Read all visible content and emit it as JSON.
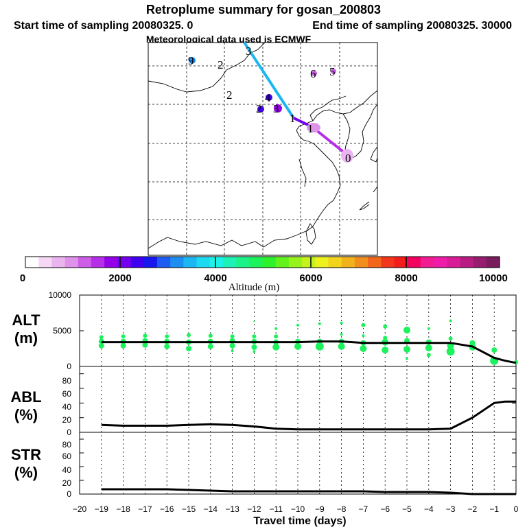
{
  "title": "Retroplume summary for gosan_200803",
  "subtitle_start": "Start time of sampling 20080325.    0",
  "subtitle_end": "End time of sampling 20080325. 30000",
  "subtitle_met": "Meteorological data used is ECMWF",
  "colorbar": {
    "label": "Altitude  (m)",
    "tick_labels": [
      "0",
      "2000",
      "4000",
      "6000",
      "8000",
      "10000"
    ],
    "colors": [
      "#ffffff",
      "#f5d8f5",
      "#eab5ef",
      "#df92ea",
      "#cc5ee8",
      "#b62ee8",
      "#9400e8",
      "#7400ee",
      "#4000f0",
      "#1818ee",
      "#1c5cf2",
      "#1c8ef2",
      "#1cb6f2",
      "#1cdaf2",
      "#1cf2e6",
      "#1cf2b8",
      "#1cf28a",
      "#1cf25c",
      "#2cf22c",
      "#64f21c",
      "#98f21c",
      "#c6f21c",
      "#eef21c",
      "#f2d41c",
      "#f2b21c",
      "#f28e1c",
      "#f2661c",
      "#f2361c",
      "#f21c1c",
      "#f20060",
      "#f21c92",
      "#ee1ca8",
      "#d81c98",
      "#b81c82",
      "#981c6e",
      "#781c5c"
    ]
  },
  "map": {
    "trajectory_labels": [
      {
        "text": "0",
        "color": "#000000"
      },
      {
        "text": "1",
        "color": "#000000"
      },
      {
        "text": "1",
        "color": "#000000"
      },
      {
        "text": "2",
        "color": "#000000"
      },
      {
        "text": "2",
        "color": "#000000"
      },
      {
        "text": "2",
        "color": "#000000"
      },
      {
        "text": "3",
        "color": "#000000"
      },
      {
        "text": "4",
        "color": "#000000"
      },
      {
        "text": "5",
        "color": "#000000"
      },
      {
        "text": "6",
        "color": "#000000"
      },
      {
        "text": "3",
        "color": "#000000"
      },
      {
        "text": "9",
        "color": "#000000"
      }
    ]
  },
  "chart_data": [
    {
      "type": "scatter",
      "panel": "ALT",
      "ylabel_line1": "ALT",
      "ylabel_line2": "(m)",
      "ylim": [
        0,
        10000
      ],
      "yticks": [
        "0",
        "5000",
        "10000"
      ],
      "line": {
        "name": "mean altitude",
        "x": [
          0,
          -0.5,
          -1,
          -2,
          -3,
          -4,
          -5,
          -6,
          -7,
          -8,
          -9,
          -10,
          -11,
          -12,
          -13,
          -14,
          -15,
          -16,
          -17,
          -18,
          -19
        ],
        "y": [
          500,
          800,
          1200,
          2800,
          3300,
          3300,
          3300,
          3300,
          3300,
          3500,
          3500,
          3400,
          3400,
          3400,
          3400,
          3400,
          3400,
          3400,
          3400,
          3400,
          3400
        ]
      },
      "points": [
        {
          "x": 0,
          "y": 600,
          "s": 3
        },
        {
          "x": -1,
          "y": 800,
          "s": 6
        },
        {
          "x": -1,
          "y": 2300,
          "s": 4
        },
        {
          "x": -2,
          "y": 2700,
          "s": 5
        },
        {
          "x": -2,
          "y": 3300,
          "s": 4
        },
        {
          "x": -3,
          "y": 2100,
          "s": 6
        },
        {
          "x": -3,
          "y": 2900,
          "s": 5
        },
        {
          "x": -3,
          "y": 3900,
          "s": 3
        },
        {
          "x": -3,
          "y": 6400,
          "s": 2
        },
        {
          "x": -4,
          "y": 1600,
          "s": 3
        },
        {
          "x": -4,
          "y": 2600,
          "s": 5
        },
        {
          "x": -4,
          "y": 3400,
          "s": 4
        },
        {
          "x": -4,
          "y": 5300,
          "s": 2
        },
        {
          "x": -5,
          "y": 1100,
          "s": 2
        },
        {
          "x": -5,
          "y": 2400,
          "s": 5
        },
        {
          "x": -5,
          "y": 3600,
          "s": 4
        },
        {
          "x": -5,
          "y": 5100,
          "s": 5
        },
        {
          "x": -6,
          "y": 2300,
          "s": 5
        },
        {
          "x": -6,
          "y": 3400,
          "s": 5
        },
        {
          "x": -6,
          "y": 4000,
          "s": 3
        },
        {
          "x": -6,
          "y": 5600,
          "s": 3
        },
        {
          "x": -7,
          "y": 2500,
          "s": 5
        },
        {
          "x": -7,
          "y": 3300,
          "s": 4
        },
        {
          "x": -7,
          "y": 4300,
          "s": 2
        },
        {
          "x": -7,
          "y": 5800,
          "s": 3
        },
        {
          "x": -8,
          "y": 2800,
          "s": 5
        },
        {
          "x": -8,
          "y": 3500,
          "s": 4
        },
        {
          "x": -8,
          "y": 4500,
          "s": 2
        },
        {
          "x": -8,
          "y": 6100,
          "s": 2
        },
        {
          "x": -9,
          "y": 2800,
          "s": 6
        },
        {
          "x": -9,
          "y": 3500,
          "s": 4
        },
        {
          "x": -9,
          "y": 6000,
          "s": 2
        },
        {
          "x": -10,
          "y": 2800,
          "s": 5
        },
        {
          "x": -10,
          "y": 3500,
          "s": 4
        },
        {
          "x": -10,
          "y": 5800,
          "s": 2
        },
        {
          "x": -11,
          "y": 2700,
          "s": 5
        },
        {
          "x": -11,
          "y": 3400,
          "s": 4
        },
        {
          "x": -11,
          "y": 4200,
          "s": 3
        },
        {
          "x": -11,
          "y": 5300,
          "s": 2
        },
        {
          "x": -12,
          "y": 2100,
          "s": 2
        },
        {
          "x": -12,
          "y": 2700,
          "s": 4
        },
        {
          "x": -12,
          "y": 3500,
          "s": 4
        },
        {
          "x": -12,
          "y": 4200,
          "s": 3
        },
        {
          "x": -12,
          "y": 6300,
          "s": 1
        },
        {
          "x": -13,
          "y": 2200,
          "s": 2
        },
        {
          "x": -13,
          "y": 2900,
          "s": 4
        },
        {
          "x": -13,
          "y": 3600,
          "s": 4
        },
        {
          "x": -13,
          "y": 4200,
          "s": 3
        },
        {
          "x": -14,
          "y": 2800,
          "s": 4
        },
        {
          "x": -14,
          "y": 3500,
          "s": 4
        },
        {
          "x": -14,
          "y": 4300,
          "s": 3
        },
        {
          "x": -15,
          "y": 2500,
          "s": 4
        },
        {
          "x": -15,
          "y": 3400,
          "s": 4
        },
        {
          "x": -15,
          "y": 4400,
          "s": 3
        },
        {
          "x": -16,
          "y": 2800,
          "s": 4
        },
        {
          "x": -16,
          "y": 3500,
          "s": 4
        },
        {
          "x": -16,
          "y": 4200,
          "s": 3
        },
        {
          "x": -17,
          "y": 3000,
          "s": 4
        },
        {
          "x": -17,
          "y": 3600,
          "s": 4
        },
        {
          "x": -17,
          "y": 4300,
          "s": 3
        },
        {
          "x": -18,
          "y": 2900,
          "s": 4
        },
        {
          "x": -18,
          "y": 3500,
          "s": 4
        },
        {
          "x": -18,
          "y": 4200,
          "s": 3
        },
        {
          "x": -19,
          "y": 2900,
          "s": 4
        },
        {
          "x": -19,
          "y": 3500,
          "s": 4
        },
        {
          "x": -19,
          "y": 4100,
          "s": 3
        }
      ]
    },
    {
      "type": "line",
      "panel": "ABL",
      "ylabel_line1": "ABL",
      "ylabel_line2": "(%)",
      "ylim": [
        0,
        90
      ],
      "yticks": [
        "0",
        "20",
        "40",
        "60",
        "80"
      ],
      "x": [
        0,
        -0.5,
        -1,
        -2,
        -3,
        -4,
        -5,
        -6,
        -7,
        -8,
        -9,
        -10,
        -11,
        -12,
        -13,
        -14,
        -15,
        -16,
        -17,
        -18,
        -19
      ],
      "y": [
        42,
        42,
        40,
        20,
        5,
        4,
        4,
        4,
        4,
        4,
        4,
        4,
        5,
        8,
        10,
        11,
        10,
        9,
        9,
        9,
        10
      ]
    },
    {
      "type": "line",
      "panel": "STR",
      "ylabel_line1": "STR",
      "ylabel_line2": "(%)",
      "ylim": [
        0,
        90
      ],
      "yticks": [
        "0",
        "20",
        "40",
        "60",
        "80"
      ],
      "x": [
        0,
        -1,
        -2,
        -3,
        -4,
        -5,
        -6,
        -7,
        -8,
        -9,
        -10,
        -11,
        -12,
        -13,
        -14,
        -15,
        -16,
        -17,
        -18,
        -19
      ],
      "y": [
        0,
        0,
        0,
        2,
        3,
        3,
        3,
        4,
        4,
        4,
        4,
        4,
        4,
        4,
        5,
        6,
        7,
        7,
        7,
        7
      ]
    }
  ],
  "xaxis": {
    "label": "Travel time (days)",
    "xlim": [
      -20,
      0
    ],
    "tick_labels": [
      "−20",
      "−19",
      "−18",
      "−17",
      "−16",
      "−15",
      "−14",
      "−13",
      "−12",
      "−11",
      "−10",
      "−9",
      "−8",
      "−7",
      "−6",
      "−5",
      "−4",
      "−3",
      "−2",
      "−1",
      "0"
    ]
  }
}
